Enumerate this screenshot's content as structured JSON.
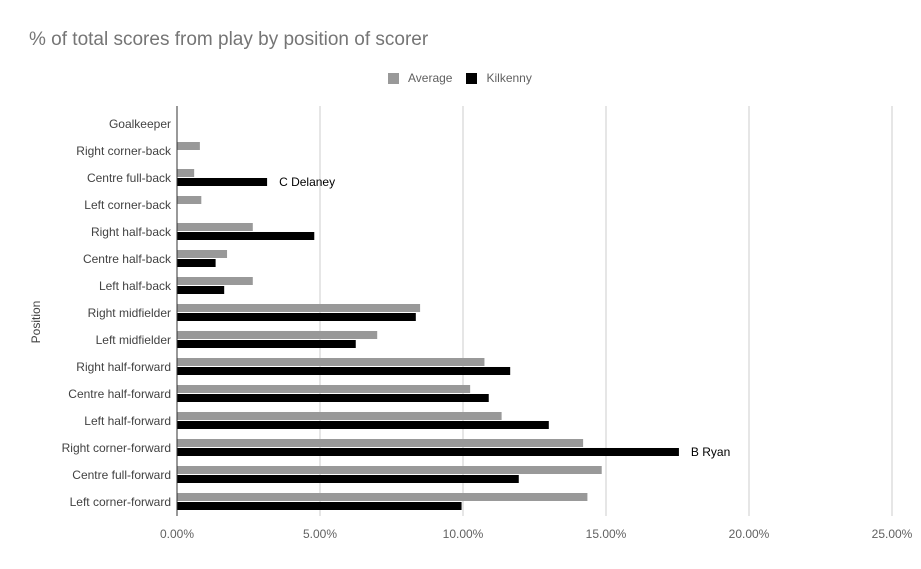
{
  "chart_data": {
    "type": "bar",
    "orientation": "horizontal",
    "title": "% of total scores from play by position of scorer",
    "ylabel": "Position",
    "xlabel": "",
    "xlim": [
      0,
      0.25
    ],
    "x_ticks": [
      "0.00%",
      "5.00%",
      "10.00%",
      "15.00%",
      "20.00%",
      "25.00%"
    ],
    "grid": "vertical",
    "legend_position": "top",
    "categories": [
      "Goalkeeper",
      "Right corner-back",
      "Centre full-back",
      "Left corner-back",
      "Right half-back",
      "Centre half-back",
      "Left half-back",
      "Right midfielder",
      "Left midfielder",
      "Right half-forward",
      "Centre half-forward",
      "Left half-forward",
      "Right corner-forward",
      "Centre full-forward",
      "Left corner-forward"
    ],
    "series": [
      {
        "name": "Average",
        "color": "#999999",
        "values": [
          0,
          0.008,
          0.006,
          0.0085,
          0.0265,
          0.0175,
          0.0265,
          0.085,
          0.07,
          0.1075,
          0.1025,
          0.1135,
          0.142,
          0.1485,
          0.1435
        ]
      },
      {
        "name": "Kilkenny",
        "color": "#000000",
        "values": [
          0,
          0,
          0.0315,
          0,
          0.048,
          0.0135,
          0.0165,
          0.0835,
          0.0625,
          0.1165,
          0.109,
          0.13,
          0.1755,
          0.1195,
          0.0995
        ]
      }
    ],
    "annotations": [
      {
        "series": "Kilkenny",
        "category": "Centre full-back",
        "text": "C Delaney"
      },
      {
        "series": "Kilkenny",
        "category": "Right corner-forward",
        "text": "B Ryan"
      }
    ]
  }
}
